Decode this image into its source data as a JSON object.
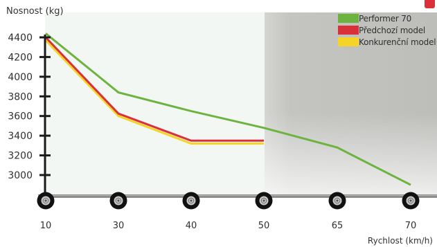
{
  "chart_data": {
    "type": "line",
    "ylabel": "Nosnost (kg)",
    "xlabel": "Rychlost (km/h)",
    "categories": [
      "10",
      "30",
      "40",
      "50",
      "65",
      "70"
    ],
    "yticks": [
      3000,
      3200,
      3400,
      3600,
      3800,
      4000,
      4200,
      4400
    ],
    "ylim": [
      2800,
      4500
    ],
    "grid": false,
    "legend_position": "top-right",
    "series": [
      {
        "name": "Performer 70",
        "color": "#6db33f",
        "values": [
          4440,
          3840,
          3650,
          3480,
          3280,
          2900
        ]
      },
      {
        "name": "Předchozí model",
        "color": "#d9303a",
        "values": [
          4400,
          3625,
          3350,
          3350,
          null,
          null
        ]
      },
      {
        "name": "Konkurenční model",
        "color": "#f5d327",
        "values": [
          4370,
          3600,
          3320,
          3320,
          null,
          null
        ]
      }
    ]
  },
  "theme": {
    "left_panel_bg": "#f3f7f3",
    "right_panel_bg": "#c6c6c3",
    "axis_color": "#1a1a1a",
    "ground_color": "#8c8c8c",
    "tire_color": "#111111",
    "hub_color": "#c8c8c8",
    "accent_red": "#d9303a"
  },
  "icons": {
    "axle_marker": "tire-icon",
    "corner": "red-tab-icon"
  }
}
